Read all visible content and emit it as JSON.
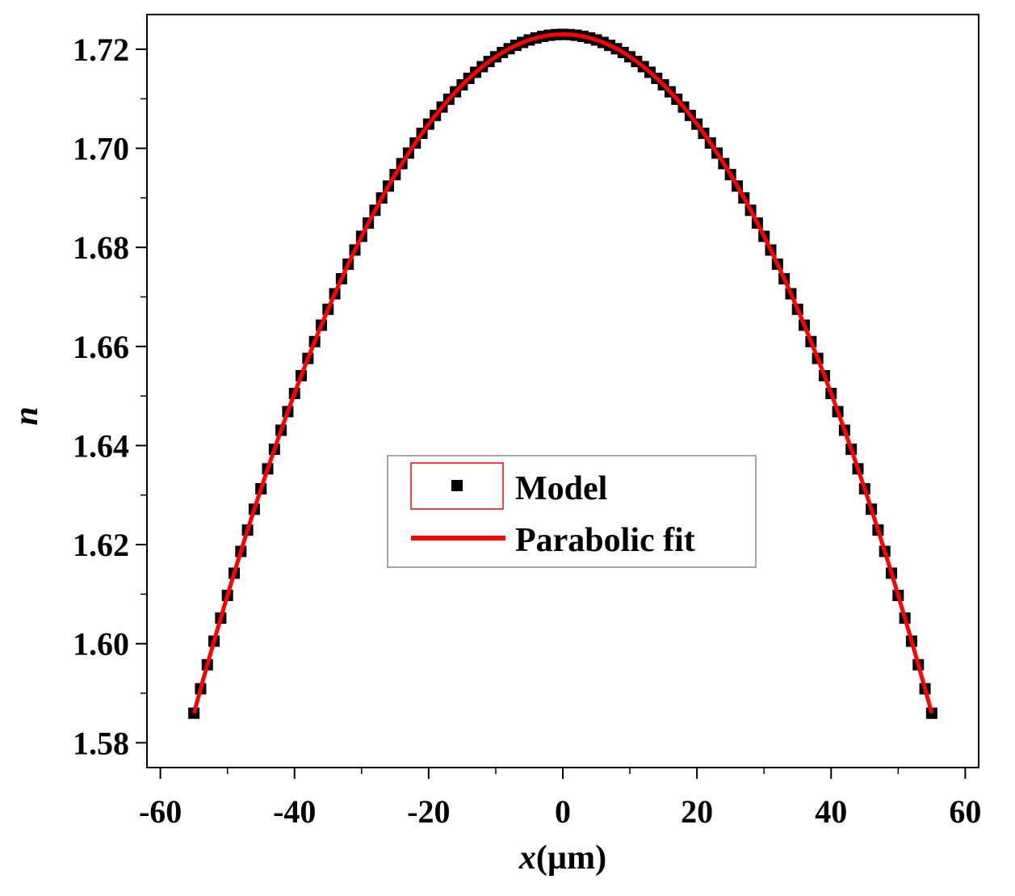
{
  "chart_data": {
    "type": "scatter",
    "title": "",
    "xlabel": "x(µm)",
    "xlabel_var": "x",
    "xlabel_unit": "(µm)",
    "ylabel": "n",
    "xlim": [
      -62,
      62
    ],
    "ylim": [
      1.575,
      1.727
    ],
    "x_ticks": [
      -60,
      -40,
      -20,
      0,
      20,
      40,
      60
    ],
    "x_tick_labels": [
      "-60",
      "-40",
      "-20",
      "0",
      "20",
      "40",
      "60"
    ],
    "y_ticks": [
      1.58,
      1.6,
      1.62,
      1.64,
      1.66,
      1.68,
      1.7,
      1.72
    ],
    "y_tick_labels": [
      "1.58",
      "1.60",
      "1.62",
      "1.64",
      "1.66",
      "1.68",
      "1.70",
      "1.72"
    ],
    "grid": false,
    "legend_position": "center",
    "series": [
      {
        "name": "Model",
        "kind": "scatter",
        "marker": "square",
        "color": "#000000",
        "x_range": [
          -55,
          55
        ],
        "num_points": 111,
        "formula": "n = 1.723 - 0.0000453 * x^2"
      },
      {
        "name": "Parabolic fit",
        "kind": "line",
        "color": "#ff0000",
        "x_range": [
          -55,
          55
        ],
        "formula": "n = 1.723 - 0.0000453 * x^2"
      }
    ],
    "model": {
      "n0": 1.723,
      "a": 4.53e-05
    }
  },
  "legend": {
    "items": [
      {
        "label": "Model"
      },
      {
        "label": "Parabolic fit"
      }
    ]
  }
}
